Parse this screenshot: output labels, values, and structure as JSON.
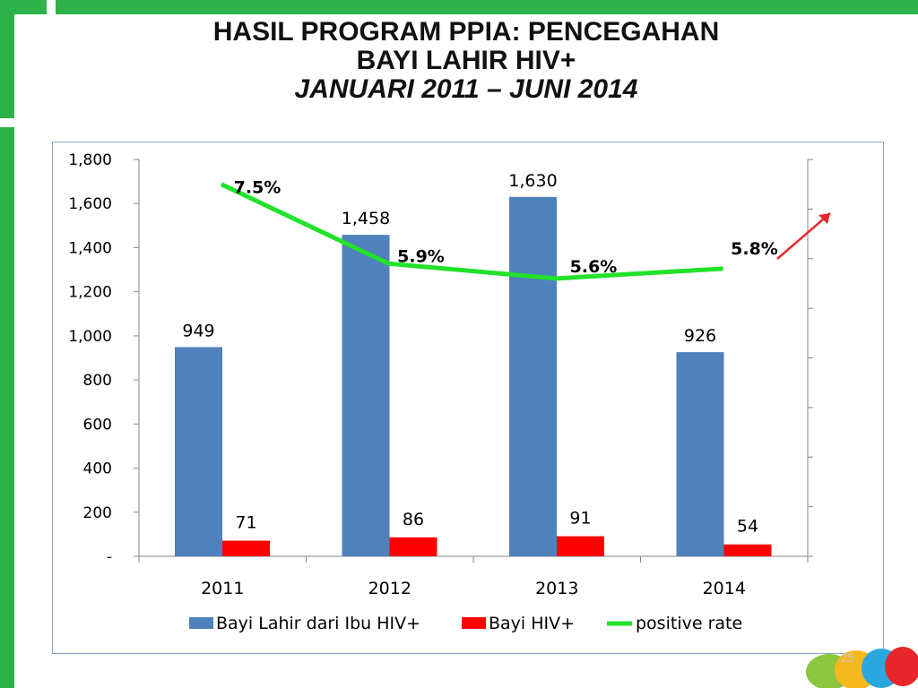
{
  "slide": {
    "title_lines": [
      "HASIL PROGRAM PPIA: PENCEGAHAN",
      "BAYI LAHIR HIV+",
      "JANUARI 2011 – JUNI 2014"
    ],
    "page_number": "25",
    "accent_color": "#2db34a"
  },
  "chart_data": {
    "type": "bar",
    "categories": [
      "2011",
      "2012",
      "2013",
      "2014"
    ],
    "series": [
      {
        "name": "Bayi Lahir dari Ibu HIV+",
        "type": "bar",
        "color": "#4f81bd",
        "values": [
          949,
          1458,
          1630,
          926
        ],
        "labels": [
          "949",
          "1,458",
          "1,630",
          "926"
        ]
      },
      {
        "name": "Bayi HIV+",
        "type": "bar",
        "color": "#ff0000",
        "values": [
          71,
          86,
          91,
          54
        ],
        "labels": [
          "71",
          "86",
          "91",
          "54"
        ]
      },
      {
        "name": "positive rate",
        "type": "line",
        "color": "#22e22a",
        "axis": "secondary",
        "values": [
          7.5,
          5.9,
          5.6,
          5.8
        ],
        "labels": [
          "7.5%",
          "5.9%",
          "5.6%",
          "5.8%"
        ]
      }
    ],
    "y_axis": {
      "ylim": [
        0,
        1800
      ],
      "ticks": [
        0,
        200,
        400,
        600,
        800,
        1000,
        1200,
        1400,
        1600,
        1800
      ],
      "tick_labels": [
        "-",
        "200",
        "400",
        "600",
        "800",
        "1,000",
        "1,200",
        "1,400",
        "1,600",
        "1,800"
      ]
    },
    "y2_axis": {
      "ylim": [
        0,
        8
      ],
      "tick_labels_shown": false
    },
    "annotation": {
      "type": "arrow",
      "direction": "up-right",
      "color": "#e8262b"
    },
    "legend_position": "bottom",
    "grid": false
  }
}
